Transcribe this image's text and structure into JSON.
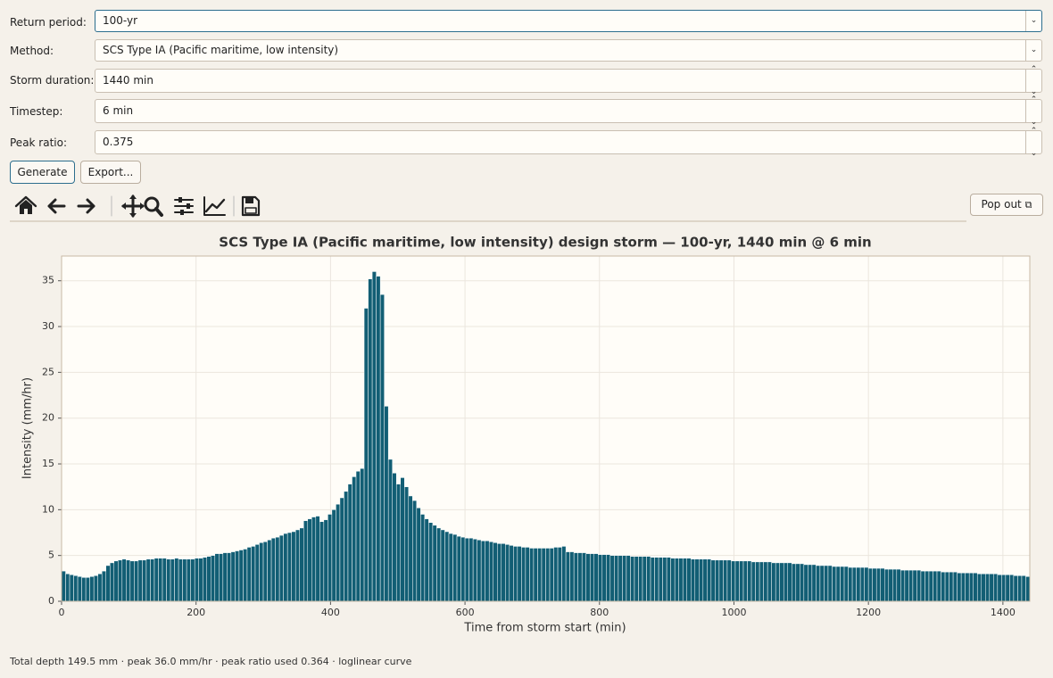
{
  "form": {
    "fields": [
      {
        "label": "Return period:",
        "value": "100-yr"
      },
      {
        "label": "Method:",
        "value": "SCS Type IA (Pacific maritime, low intensity)"
      },
      {
        "label": "Storm duration:",
        "value": "1440 min"
      },
      {
        "label": "Timestep:",
        "value": "6 min"
      },
      {
        "label": "Peak ratio:",
        "value": "0.375"
      }
    ],
    "buttons": [
      "Generate",
      "Export..."
    ]
  },
  "popout": "Pop out",
  "chart_data": {
    "type": "histogram",
    "title": "SCS Type IA (Pacific maritime, low intensity) design storm — 100-yr, 1440 min @ 6 min",
    "x_label": "Time from storm start (min)",
    "y_label": "Intensity (mm/hr)",
    "color": "#125e74",
    "grid": true,
    "xlim": [
      0,
      1440
    ],
    "xticks": [
      0,
      200,
      400,
      600,
      800,
      1000,
      1200,
      1400
    ],
    "ylim": [
      0,
      37.7
    ],
    "yticks": [
      0,
      5,
      10,
      15,
      20,
      25,
      30,
      35
    ],
    "bins": [
      0,
      6,
      12,
      18,
      24,
      30,
      36,
      42,
      48,
      54,
      60,
      66,
      72,
      78,
      84,
      90,
      96,
      102,
      108,
      114,
      120,
      126,
      132,
      138,
      144,
      150,
      156,
      162,
      168,
      174,
      180,
      186,
      192,
      198,
      204,
      210,
      216,
      222,
      228,
      234,
      240,
      246,
      252,
      258,
      264,
      270,
      276,
      282,
      288,
      294,
      300,
      306,
      312,
      318,
      324,
      330,
      336,
      342,
      348,
      354,
      360,
      366,
      372,
      378,
      384,
      390,
      396,
      402,
      408,
      414,
      420,
      426,
      432,
      438,
      444,
      450,
      456,
      462,
      468,
      474,
      480,
      486,
      492,
      498,
      504,
      510,
      516,
      522,
      528,
      534,
      540,
      546,
      552,
      558,
      564,
      570,
      576,
      582,
      588,
      594,
      600,
      606,
      612,
      618,
      624,
      630,
      636,
      642,
      648,
      654,
      660,
      666,
      672,
      678,
      684,
      690,
      696,
      702,
      708,
      714,
      720,
      726,
      732,
      738,
      744,
      750,
      756,
      762,
      768,
      774,
      780,
      786,
      792,
      798,
      804,
      810,
      816,
      822,
      828,
      834,
      840,
      846,
      852,
      858,
      864,
      870,
      876,
      882,
      888,
      894,
      900,
      906,
      912,
      918,
      924,
      930,
      936,
      942,
      948,
      954,
      960,
      966,
      972,
      978,
      984,
      990,
      996,
      1002,
      1008,
      1014,
      1020,
      1026,
      1032,
      1038,
      1044,
      1050,
      1056,
      1062,
      1068,
      1074,
      1080,
      1086,
      1092,
      1098,
      1104,
      1110,
      1116,
      1122,
      1128,
      1134,
      1140,
      1146,
      1152,
      1158,
      1164,
      1170,
      1176,
      1182,
      1188,
      1194,
      1200,
      1206,
      1212,
      1218,
      1224,
      1230,
      1236,
      1242,
      1248,
      1254,
      1260,
      1266,
      1272,
      1278,
      1284,
      1290,
      1296,
      1302,
      1308,
      1314,
      1320,
      1326,
      1332,
      1338,
      1344,
      1350,
      1356,
      1362,
      1368,
      1374,
      1380,
      1386,
      1392,
      1398,
      1404,
      1410,
      1416,
      1422,
      1428,
      1434,
      1440
    ],
    "values": [
      3.3,
      3.0,
      2.9,
      2.8,
      2.7,
      2.6,
      2.6,
      2.7,
      2.8,
      3.0,
      3.3,
      3.9,
      4.2,
      4.4,
      4.5,
      4.6,
      4.5,
      4.4,
      4.4,
      4.5,
      4.5,
      4.6,
      4.6,
      4.7,
      4.7,
      4.7,
      4.6,
      4.6,
      4.7,
      4.6,
      4.6,
      4.6,
      4.6,
      4.7,
      4.7,
      4.8,
      4.9,
      5.0,
      5.2,
      5.2,
      5.3,
      5.3,
      5.4,
      5.5,
      5.6,
      5.7,
      5.9,
      6.0,
      6.2,
      6.4,
      6.5,
      6.7,
      6.9,
      7.0,
      7.2,
      7.4,
      7.5,
      7.6,
      7.8,
      8.0,
      8.8,
      9.0,
      9.2,
      9.3,
      8.7,
      8.9,
      9.5,
      10.0,
      10.6,
      11.3,
      12.0,
      12.8,
      13.6,
      14.2,
      14.5,
      32.0,
      35.2,
      36.0,
      35.5,
      33.5,
      21.3,
      15.5,
      14.0,
      12.8,
      13.5,
      12.5,
      11.5,
      11.0,
      10.2,
      9.5,
      9.0,
      8.6,
      8.3,
      8.0,
      7.8,
      7.6,
      7.4,
      7.3,
      7.1,
      7.0,
      6.9,
      6.9,
      6.8,
      6.7,
      6.6,
      6.6,
      6.5,
      6.4,
      6.3,
      6.3,
      6.2,
      6.1,
      6.0,
      6.0,
      5.9,
      5.9,
      5.8,
      5.8,
      5.8,
      5.8,
      5.8,
      5.8,
      5.9,
      5.9,
      6.0,
      5.4,
      5.4,
      5.3,
      5.3,
      5.3,
      5.2,
      5.2,
      5.2,
      5.1,
      5.1,
      5.1,
      5.0,
      5.0,
      5.0,
      5.0,
      5.0,
      4.9,
      4.9,
      4.9,
      4.9,
      4.9,
      4.8,
      4.8,
      4.8,
      4.8,
      4.8,
      4.7,
      4.7,
      4.7,
      4.7,
      4.7,
      4.6,
      4.6,
      4.6,
      4.6,
      4.6,
      4.5,
      4.5,
      4.5,
      4.5,
      4.5,
      4.4,
      4.4,
      4.4,
      4.4,
      4.4,
      4.3,
      4.3,
      4.3,
      4.3,
      4.3,
      4.2,
      4.2,
      4.2,
      4.2,
      4.2,
      4.1,
      4.1,
      4.1,
      4.0,
      4.0,
      4.0,
      3.9,
      3.9,
      3.9,
      3.9,
      3.8,
      3.8,
      3.8,
      3.8,
      3.7,
      3.7,
      3.7,
      3.7,
      3.7,
      3.6,
      3.6,
      3.6,
      3.6,
      3.5,
      3.5,
      3.5,
      3.5,
      3.4,
      3.4,
      3.4,
      3.4,
      3.4,
      3.3,
      3.3,
      3.3,
      3.3,
      3.3,
      3.2,
      3.2,
      3.2,
      3.2,
      3.1,
      3.1,
      3.1,
      3.1,
      3.1,
      3.0,
      3.0,
      3.0,
      3.0,
      3.0,
      2.9,
      2.9,
      2.9,
      2.9,
      2.8,
      2.8,
      2.8,
      2.7
    ]
  },
  "status": "Total depth 149.5 mm · peak 36.0 mm/hr · peak ratio used 0.364 · loglinear curve"
}
